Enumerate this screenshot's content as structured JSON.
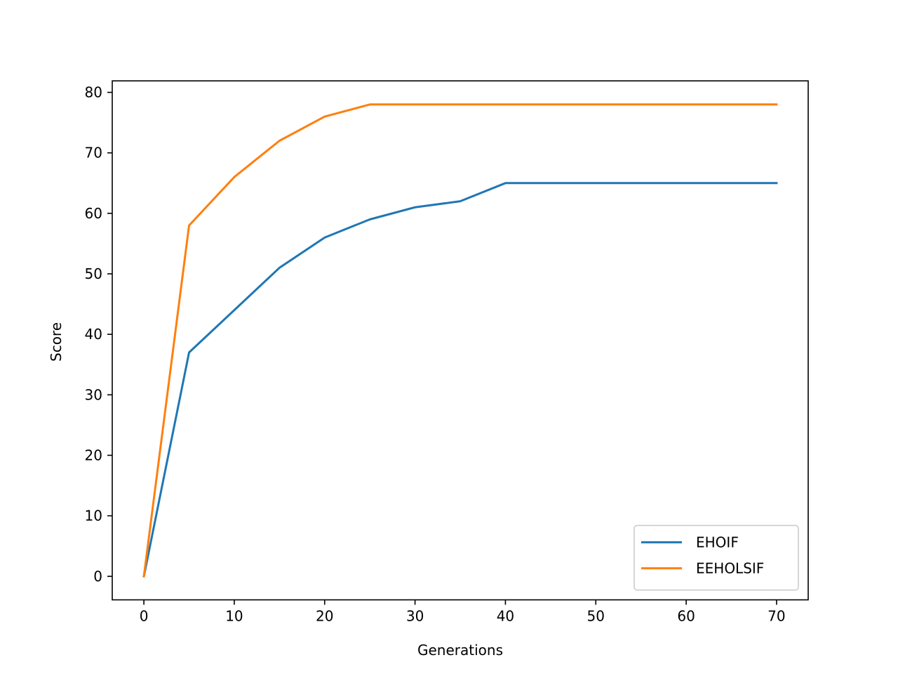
{
  "chart_data": {
    "type": "line",
    "title": "",
    "xlabel": "Generations",
    "ylabel": "Score",
    "x": [
      0,
      5,
      10,
      15,
      20,
      25,
      30,
      35,
      40,
      45,
      50,
      55,
      60,
      65,
      70
    ],
    "xlim": [
      -3.5,
      73.5
    ],
    "ylim": [
      -3.9,
      81.9
    ],
    "xticks": [
      0,
      10,
      20,
      30,
      40,
      50,
      60,
      70
    ],
    "yticks": [
      0,
      10,
      20,
      30,
      40,
      50,
      60,
      70,
      80
    ],
    "grid": false,
    "legend_position": "lower right",
    "series": [
      {
        "name": "EHOIF",
        "color": "#1f77b4",
        "values": [
          0,
          37,
          44,
          51,
          56,
          59,
          61,
          62,
          65,
          65,
          65,
          65,
          65,
          65,
          65
        ]
      },
      {
        "name": "EEHOLSIF",
        "color": "#ff7f0e",
        "values": [
          0,
          58,
          66,
          72,
          76,
          78,
          78,
          78,
          78,
          78,
          78,
          78,
          78,
          78,
          78
        ]
      }
    ]
  }
}
